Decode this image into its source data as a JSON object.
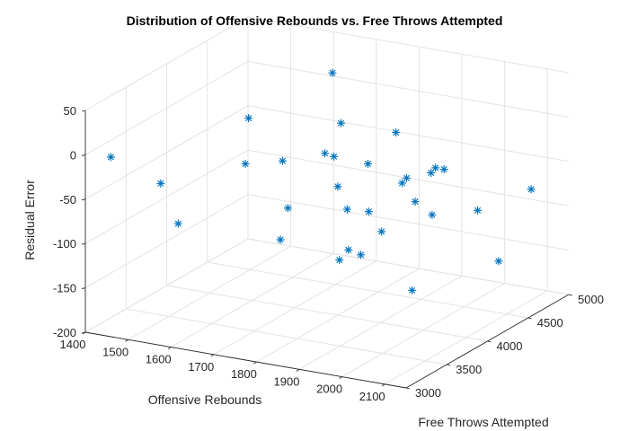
{
  "chart_data": {
    "type": "scatter",
    "title": "Distribution of Offensive Rebounds vs. Free Throws Attempted",
    "xlabel": "Offensive Rebounds",
    "ylabel": "Free Throws Attempted",
    "zlabel": "Residual Error",
    "xlim": [
      1400,
      2150
    ],
    "ylim": [
      3000,
      5000
    ],
    "zlim": [
      -200,
      50
    ],
    "xticks": [
      "1400",
      "1500",
      "1600",
      "1700",
      "1800",
      "1900",
      "2000",
      "2100"
    ],
    "yticks": [
      "3000",
      "3500",
      "4000",
      "4500",
      "5000"
    ],
    "zticks": [
      "-200",
      "-150",
      "-100",
      "-50",
      "0",
      "50"
    ],
    "grid": true,
    "marker": "*",
    "color": "#0072BD",
    "points": [
      {
        "x": 1450,
        "y": 3050,
        "z": -1
      },
      {
        "x": 1500,
        "y": 3400,
        "z": -45
      },
      {
        "x": 1560,
        "y": 3300,
        "z": -80
      },
      {
        "x": 1620,
        "y": 3850,
        "z": 15
      },
      {
        "x": 1660,
        "y": 3600,
        "z": -20
      },
      {
        "x": 1690,
        "y": 3900,
        "z": -30
      },
      {
        "x": 1740,
        "y": 4250,
        "z": 55
      },
      {
        "x": 1760,
        "y": 4250,
        "z": 0
      },
      {
        "x": 1750,
        "y": 3650,
        "z": -65
      },
      {
        "x": 1770,
        "y": 4000,
        "z": -20
      },
      {
        "x": 1800,
        "y": 4000,
        "z": -55
      },
      {
        "x": 1780,
        "y": 3400,
        "z": -85
      },
      {
        "x": 1810,
        "y": 3900,
        "z": -15
      },
      {
        "x": 1860,
        "y": 4400,
        "z": -10
      },
      {
        "x": 1860,
        "y": 3800,
        "z": -65
      },
      {
        "x": 1880,
        "y": 3950,
        "z": -20
      },
      {
        "x": 1880,
        "y": 3600,
        "z": -110
      },
      {
        "x": 1920,
        "y": 3500,
        "z": -90
      },
      {
        "x": 1920,
        "y": 3750,
        "z": -60
      },
      {
        "x": 1930,
        "y": 3600,
        "z": -100
      },
      {
        "x": 1950,
        "y": 3750,
        "z": -80
      },
      {
        "x": 1960,
        "y": 3950,
        "z": -35
      },
      {
        "x": 1980,
        "y": 3900,
        "z": -25
      },
      {
        "x": 1980,
        "y": 4200,
        "z": -35
      },
      {
        "x": 2000,
        "y": 4150,
        "z": -25
      },
      {
        "x": 2000,
        "y": 3900,
        "z": -50
      },
      {
        "x": 2020,
        "y": 4150,
        "z": -25
      },
      {
        "x": 2030,
        "y": 3950,
        "z": -65
      },
      {
        "x": 2070,
        "y": 4300,
        "z": -75
      },
      {
        "x": 2050,
        "y": 3600,
        "z": -130
      },
      {
        "x": 2100,
        "y": 4800,
        "z": -75
      },
      {
        "x": 2100,
        "y": 4400,
        "z": -135
      }
    ]
  }
}
